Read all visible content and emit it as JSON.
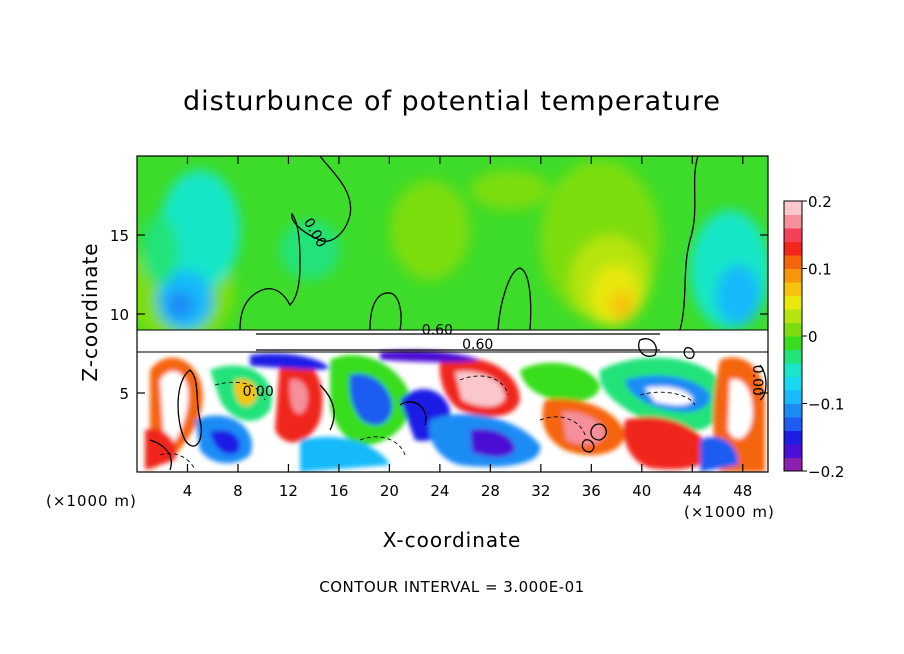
{
  "chart_data": {
    "type": "heatmap",
    "title": "disturbunce of potential temperature",
    "xlabel": "X-coordinate",
    "ylabel": "Z-coordinate",
    "x_unit": "(×1000 m)",
    "footer": "CONTOUR INTERVAL = 3.000E-01",
    "xlim": [
      0,
      50
    ],
    "ylim": [
      0,
      20
    ],
    "x_ticks": [
      4,
      8,
      12,
      16,
      20,
      24,
      28,
      32,
      36,
      40,
      44,
      48
    ],
    "y_ticks": [
      5,
      10,
      15
    ],
    "colorbar": {
      "range": [
        -0.2,
        0.2
      ],
      "tick_values": [
        0.2,
        0.1,
        0,
        -0.1,
        -0.2
      ],
      "tick_labels": [
        "0.2",
        "0.1",
        "0",
        "−0.1",
        "−0.2"
      ],
      "colors": [
        "#8B1FB0",
        "#4B0FD6",
        "#1D1DE6",
        "#1E5BF0",
        "#1C8CF5",
        "#19B9FA",
        "#17D9F0",
        "#19E6C8",
        "#23E27A",
        "#38DD1E",
        "#7BDD10",
        "#B6E40E",
        "#E8E80C",
        "#F5C30C",
        "#F7960C",
        "#F5650E",
        "#F0271A",
        "#F5405A",
        "#F5909A",
        "#FAC8CC"
      ]
    },
    "contour_labels": [
      {
        "text": "0.00",
        "x": 13.8,
        "z": 15.0,
        "angle": 60
      },
      {
        "text": "0.60",
        "x": 23.8,
        "z": 8.7,
        "angle": 0
      },
      {
        "text": "0.60",
        "x": 27.0,
        "z": 7.8,
        "angle": 0
      },
      {
        "text": "0.00",
        "x": 9.6,
        "z": 4.8,
        "angle": 0
      },
      {
        "text": "0.00",
        "x": 48.8,
        "z": 5.8,
        "angle": 90
      }
    ]
  }
}
